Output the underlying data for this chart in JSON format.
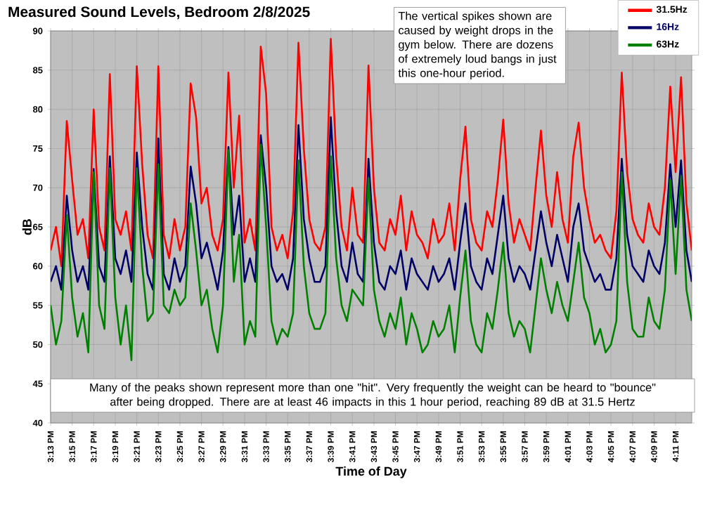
{
  "chart_data": {
    "type": "line",
    "title": "Measured Sound Levels, Bedroom 2/8/2025",
    "xlabel": "Time of Day",
    "ylabel": "dB",
    "annotations": [
      "The vertical spikes shown are caused by weight drops in the gym below. There are dozens of extremely loud bangs in just this one-hour period.",
      "Many of the peaks shown represent more than one \"hit\". Very frequently the weight can be heard to \"bounce\" after being dropped. There are at least 46 impacts in this 1 hour period, reaching 89 dB at 31.5 Hertz"
    ],
    "x": [
      15.2167,
      15.225,
      15.2333,
      15.2417,
      15.25,
      15.2583,
      15.2667,
      15.275,
      15.2833,
      15.2917,
      15.3,
      15.3083,
      15.3167,
      15.325,
      15.3333,
      15.3417,
      15.35,
      15.3583,
      15.3667,
      15.375,
      15.3833,
      15.3917,
      15.4,
      15.4083,
      15.4167,
      15.425,
      15.4333,
      15.4417,
      15.45,
      15.4583,
      15.4667,
      15.475,
      15.4833,
      15.4917,
      15.5,
      15.5083,
      15.5167,
      15.525,
      15.5333,
      15.5417,
      15.55,
      15.5583,
      15.5667,
      15.575,
      15.5833,
      15.5917,
      15.6,
      15.6083,
      15.6167,
      15.625,
      15.6333,
      15.6417,
      15.65,
      15.6583,
      15.6667,
      15.675,
      15.6833,
      15.6917,
      15.7,
      15.7083,
      15.7167,
      15.725,
      15.7333,
      15.7417,
      15.75,
      15.7583,
      15.7667,
      15.775,
      15.7833,
      15.7917,
      15.8,
      15.8083,
      15.8167,
      15.825,
      15.8333,
      15.8417,
      15.85,
      15.8583,
      15.8667,
      15.875,
      15.8833,
      15.8917,
      15.9,
      15.9083,
      15.9167,
      15.925,
      15.9333,
      15.9417,
      15.95,
      15.9583,
      15.9667,
      15.975,
      15.9833,
      15.9917,
      16.0,
      16.0083,
      16.0167,
      16.025,
      16.0333,
      16.0417,
      16.05,
      16.0583,
      16.0667,
      16.075,
      16.0833,
      16.0917,
      16.1,
      16.1083,
      16.1167,
      16.125,
      16.1333,
      16.1417,
      16.15,
      16.1583,
      16.1667,
      16.175,
      16.1833,
      16.1917,
      16.2,
      16.2083
    ],
    "series": [
      {
        "name": "31.5Hz",
        "color": "#ff0000",
        "values": [
          62,
          65,
          60,
          78.5,
          71,
          64,
          66,
          61,
          80,
          65,
          62,
          84.5,
          66,
          64,
          67,
          62,
          85.5,
          73,
          64,
          61,
          85.5,
          64,
          61,
          66,
          62,
          65,
          83.3,
          79,
          68,
          70,
          64,
          62,
          66,
          84.7,
          70,
          79.2,
          63,
          66,
          62,
          88,
          82,
          65,
          62,
          64,
          61,
          67,
          88.5,
          75,
          66,
          63,
          62,
          65,
          89,
          74,
          65,
          62,
          70,
          64,
          63,
          85.6,
          70,
          63,
          62,
          66,
          64,
          69,
          62,
          67,
          64,
          63,
          61,
          66,
          63,
          64,
          68,
          62,
          71,
          77.8,
          66,
          63,
          62,
          67,
          65,
          71,
          78.7,
          68,
          63,
          66,
          64,
          62,
          70,
          77.3,
          69,
          65,
          72,
          66,
          63,
          74,
          78.3,
          70,
          66,
          63,
          64,
          62,
          61,
          67,
          84.7,
          72,
          66,
          64,
          63,
          68,
          65,
          64,
          70,
          82.9,
          72,
          84.1,
          68,
          62
        ]
      },
      {
        "name": "16Hz",
        "color": "#000066",
        "values": [
          58,
          60,
          57,
          69,
          62,
          58,
          60,
          57,
          72.4,
          60,
          58,
          74,
          61,
          59,
          62,
          58,
          74.5,
          65,
          59,
          57,
          76.3,
          59,
          57,
          61,
          58,
          60,
          72.7,
          68,
          61,
          63,
          60,
          57,
          62,
          75.2,
          64,
          69,
          58,
          61,
          58,
          76.7,
          70,
          60,
          58,
          59,
          57,
          61,
          78,
          66,
          61,
          58,
          58,
          60,
          79,
          67,
          60,
          58,
          63,
          59,
          58,
          73.7,
          63,
          58,
          57,
          60,
          59,
          62,
          57,
          61,
          59,
          58,
          57,
          60,
          58,
          59,
          61,
          57,
          63,
          68,
          60,
          58,
          57,
          61,
          59,
          64,
          69,
          61,
          58,
          60,
          59,
          57,
          62,
          67,
          63,
          60,
          64,
          61,
          58,
          65,
          68,
          62,
          60,
          58,
          59,
          57,
          57,
          61,
          73.7,
          64,
          60,
          59,
          58,
          62,
          60,
          59,
          63,
          73,
          65,
          73.5,
          62,
          58
        ]
      },
      {
        "name": "63Hz",
        "color": "#008000",
        "values": [
          55,
          50,
          53,
          66.5,
          56,
          51,
          54,
          49,
          72,
          55,
          52,
          72.5,
          56,
          50,
          55,
          48,
          72.5,
          60,
          53,
          54,
          73,
          55,
          54,
          57,
          55,
          56,
          68,
          62,
          55,
          57,
          52,
          49,
          55,
          74.8,
          58,
          64,
          50,
          53,
          51,
          75.5,
          65,
          53,
          50,
          52,
          51,
          54,
          73.5,
          60,
          54,
          52,
          52,
          54,
          74,
          61,
          55,
          53,
          57,
          56,
          55,
          71.2,
          57,
          53,
          51,
          54,
          52,
          56,
          50,
          54,
          52,
          49,
          50,
          53,
          51,
          52,
          55,
          49,
          56,
          62,
          53,
          50,
          49,
          54,
          52,
          57,
          63,
          54,
          51,
          53,
          52,
          49,
          55,
          61,
          57,
          54,
          58,
          55,
          53,
          58,
          63,
          56,
          54,
          50,
          52,
          49,
          50,
          53,
          72,
          58,
          52,
          51,
          51,
          56,
          53,
          52,
          57,
          71,
          59,
          71.5,
          57,
          53
        ]
      }
    ],
    "xlim": [
      15.2167,
      16.2083
    ],
    "ylim": [
      40,
      90
    ],
    "xticks": [
      {
        "value": 15.2167,
        "label": "3:13 PM"
      },
      {
        "value": 15.25,
        "label": "3:15 PM"
      },
      {
        "value": 15.2833,
        "label": "3:17 PM"
      },
      {
        "value": 15.3167,
        "label": "3:19 PM"
      },
      {
        "value": 15.35,
        "label": "3:21 PM"
      },
      {
        "value": 15.3833,
        "label": "3:23 PM"
      },
      {
        "value": 15.4167,
        "label": "3:25 PM"
      },
      {
        "value": 15.45,
        "label": "3:27 PM"
      },
      {
        "value": 15.4833,
        "label": "3:29 PM"
      },
      {
        "value": 15.5167,
        "label": "3:31 PM"
      },
      {
        "value": 15.55,
        "label": "3:33 PM"
      },
      {
        "value": 15.5833,
        "label": "3:35 PM"
      },
      {
        "value": 15.6167,
        "label": "3:37 PM"
      },
      {
        "value": 15.65,
        "label": "3:39 PM"
      },
      {
        "value": 15.6833,
        "label": "3:41 PM"
      },
      {
        "value": 15.7167,
        "label": "3:43 PM"
      },
      {
        "value": 15.75,
        "label": "3:45 PM"
      },
      {
        "value": 15.7833,
        "label": "3:47 PM"
      },
      {
        "value": 15.8167,
        "label": "3:49 PM"
      },
      {
        "value": 15.85,
        "label": "3:51 PM"
      },
      {
        "value": 15.8833,
        "label": "3:53 PM"
      },
      {
        "value": 15.9167,
        "label": "3:55 PM"
      },
      {
        "value": 15.95,
        "label": "3:57 PM"
      },
      {
        "value": 15.9833,
        "label": "3:59 PM"
      },
      {
        "value": 16.0167,
        "label": "4:01 PM"
      },
      {
        "value": 16.05,
        "label": "4:03 PM"
      },
      {
        "value": 16.0833,
        "label": "4:05 PM"
      },
      {
        "value": 16.1167,
        "label": "4:07 PM"
      },
      {
        "value": 16.15,
        "label": "4:09 PM"
      },
      {
        "value": 16.1833,
        "label": "4:11 PM"
      }
    ],
    "yticks": [
      40,
      45,
      50,
      55,
      60,
      65,
      70,
      75,
      80,
      85,
      90
    ],
    "grid": true,
    "legend": "top right"
  }
}
